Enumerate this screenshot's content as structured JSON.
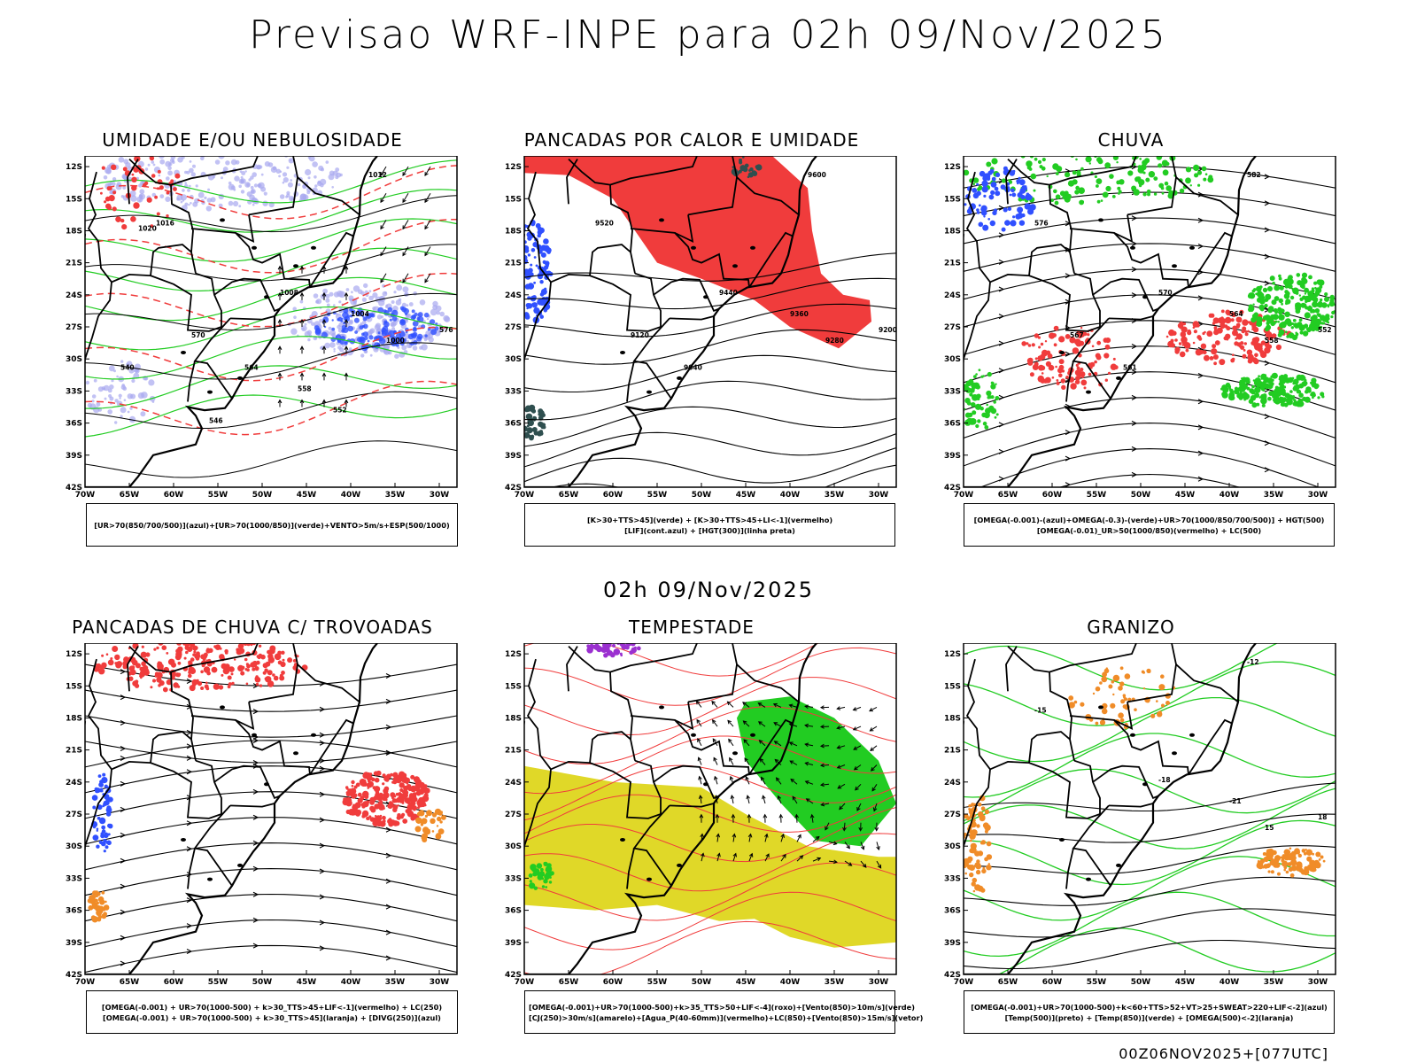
{
  "page": {
    "title": "Previsao WRF-INPE  para 02h 09/Nov/2025",
    "middle_title": "02h 09/Nov/2025",
    "footer": "00Z06NOV2025+[077UTC]"
  },
  "axes": {
    "lat_labels": [
      "12S",
      "15S",
      "18S",
      "21S",
      "24S",
      "27S",
      "30S",
      "33S",
      "36S",
      "39S",
      "42S"
    ],
    "lon_labels": [
      "70W",
      "65W",
      "60W",
      "55W",
      "50W",
      "45W",
      "40W",
      "35W",
      "30W"
    ]
  },
  "colors": {
    "blue": "#3050ff",
    "lavender": "#a8a8f0",
    "green": "#22cc22",
    "red": "#f03c3c",
    "orange": "#f08c28",
    "yellow": "#e0d828",
    "purple": "#9b30d0",
    "dark_teal": "#2f4f4f",
    "black": "#000000"
  },
  "panels": [
    {
      "title": "UMIDADE E/OU NEBULOSIDADE",
      "legend": [
        "[UR>70(850/700/500)](azul)+[UR>70(1000/850)](verde)+VENTO>5m/s+ESP(500/1000)"
      ],
      "contour_labels": [
        "1012",
        "1016",
        "1008",
        "1004",
        "1000",
        "576",
        "570",
        "564",
        "558",
        "552",
        "546",
        "540",
        "1020"
      ]
    },
    {
      "title": "PANCADAS POR CALOR E UMIDADE",
      "legend": [
        "[K>30+TTS>45](verde) + [K>30+TTS>45+LI<-1](vermelho)",
        "[LIF](cont.azul) + [HGT(300)](linha preta)"
      ],
      "contour_labels": [
        "9600",
        "9520",
        "9440",
        "9360",
        "9280",
        "9200",
        "9120",
        "9040"
      ]
    },
    {
      "title": "CHUVA",
      "legend": [
        "[OMEGA(-0.001)-(azul)+OMEGA(-0.3)-(verde)+UR>70(1000/850/700/500)] + HGT(500)",
        "[OMEGA(-0.01)_UR>50(1000/850)(vermelho) + LC(500)"
      ],
      "contour_labels": [
        "582",
        "576",
        "570",
        "564",
        "558",
        "552",
        "567",
        "561"
      ]
    },
    {
      "title": "PANCADAS DE CHUVA C/ TROVOADAS",
      "legend": [
        "[OMEGA(-0.001) + UR>70(1000-500) + k>30_TTS>45+LIF<-1](vermelho) + LC(250)",
        "[OMEGA(-0.001) + UR>70(1000-500) + k>30_TTS>45](laranja) + [DIVG(250)](azul)"
      ],
      "contour_labels": []
    },
    {
      "title": "TEMPESTADE",
      "legend": [
        "[OMEGA(-0.001)+UR>70(1000-500)+k>35_TTS>50+LIF<-4](roxo)+[Vento(850)>10m/s](verde)",
        "[CJ(250)>30m/s](amarelo)+[Agua_P(40-60mm)](vermelho)+LC(850)+[Vento(850)>15m/s](vetor)"
      ],
      "contour_labels": []
    },
    {
      "title": "GRANIZO",
      "legend": [
        "[OMEGA(-0.001)+UR>70(1000-500)+k<60+TTS>52+VT>25+SWEAT>220+LIF<-2](azul)",
        "[Temp(500)](preto) + [Temp(850)](verde) + [OMEGA(500)<-2](laranja)"
      ],
      "contour_labels": [
        "-12",
        "-15",
        "-18",
        "-21",
        "15",
        "18"
      ]
    }
  ]
}
